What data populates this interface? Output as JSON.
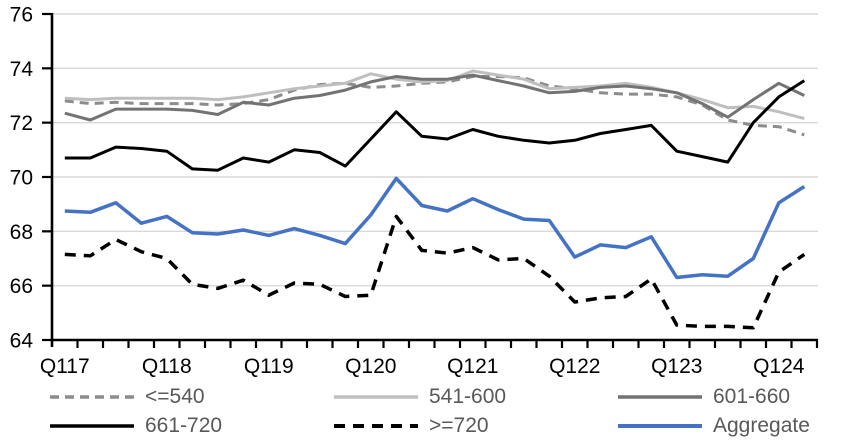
{
  "styles": {
    "background": "#FFFFFF",
    "grid_color": "#D9D9D9",
    "axis_color": "#000000",
    "axis_tick_label_color": "#000000",
    "legend_text_color": "#595959"
  },
  "chart_data": {
    "type": "line",
    "title": "",
    "grid": true,
    "legend_position": "bottom",
    "x_axis": {
      "tick_labels": [
        "Q117",
        "Q118",
        "Q119",
        "Q120",
        "Q121",
        "Q122",
        "Q123",
        "Q124"
      ],
      "n_points": 30,
      "points_per_label": 4,
      "first_label_point_index": 0
    },
    "y_axis": {
      "min": 64,
      "max": 76,
      "tick_step": 2,
      "tick_labels": [
        "64",
        "66",
        "68",
        "70",
        "72",
        "74",
        "76"
      ]
    },
    "series": [
      {
        "name": "<=540",
        "color": "#8C8C8C",
        "dash": "dash-small",
        "width": 3,
        "values": [
          72.8,
          72.7,
          72.75,
          72.7,
          72.7,
          72.7,
          72.65,
          72.7,
          72.85,
          73.2,
          73.4,
          73.45,
          73.3,
          73.35,
          73.45,
          73.5,
          73.7,
          73.7,
          73.65,
          73.35,
          73.25,
          73.1,
          73.05,
          73.05,
          72.95,
          72.65,
          72.1,
          71.9,
          71.85,
          71.55
        ]
      },
      {
        "name": "541-600",
        "color": "#BFBFBF",
        "dash": "solid",
        "width": 3,
        "values": [
          72.9,
          72.85,
          72.9,
          72.9,
          72.9,
          72.9,
          72.85,
          72.95,
          73.1,
          73.25,
          73.35,
          73.45,
          73.8,
          73.6,
          73.5,
          73.55,
          73.9,
          73.75,
          73.6,
          73.25,
          73.3,
          73.35,
          73.45,
          73.3,
          73.1,
          72.85,
          72.55,
          72.6,
          72.4,
          72.15
        ]
      },
      {
        "name": "601-660",
        "color": "#737373",
        "dash": "solid",
        "width": 3,
        "values": [
          72.35,
          72.1,
          72.5,
          72.5,
          72.5,
          72.45,
          72.3,
          72.75,
          72.65,
          72.9,
          73.0,
          73.2,
          73.5,
          73.7,
          73.6,
          73.6,
          73.75,
          73.55,
          73.35,
          73.1,
          73.15,
          73.3,
          73.35,
          73.25,
          73.1,
          72.7,
          72.2,
          72.85,
          73.45,
          73.0
        ]
      },
      {
        "name": "661-720",
        "color": "#000000",
        "dash": "solid",
        "width": 3,
        "values": [
          70.7,
          70.7,
          71.1,
          71.05,
          70.95,
          70.3,
          70.25,
          70.7,
          70.55,
          71.0,
          70.9,
          70.4,
          71.4,
          72.4,
          71.5,
          71.4,
          71.75,
          71.5,
          71.35,
          71.25,
          71.35,
          71.6,
          71.75,
          71.9,
          70.95,
          70.75,
          70.55,
          72.0,
          72.95,
          73.55
        ]
      },
      {
        "name": ">=720",
        "color": "#000000",
        "dash": "dash-large",
        "width": 3.5,
        "values": [
          67.15,
          67.1,
          67.7,
          67.25,
          67.0,
          66.05,
          65.9,
          66.2,
          65.65,
          66.1,
          66.05,
          65.6,
          65.65,
          68.55,
          67.3,
          67.2,
          67.4,
          66.95,
          67.0,
          66.35,
          65.4,
          65.55,
          65.6,
          66.25,
          64.55,
          64.5,
          64.5,
          64.45,
          66.5,
          67.15
        ]
      },
      {
        "name": "Aggregate",
        "color": "#4472C4",
        "dash": "solid",
        "width": 3.5,
        "values": [
          68.75,
          68.7,
          69.05,
          68.3,
          68.55,
          67.95,
          67.9,
          68.05,
          67.85,
          68.1,
          67.85,
          67.55,
          68.6,
          69.95,
          68.95,
          68.75,
          69.2,
          68.8,
          68.45,
          68.4,
          67.05,
          67.5,
          67.4,
          67.8,
          66.3,
          66.4,
          66.35,
          67.0,
          69.05,
          69.65
        ]
      }
    ]
  }
}
